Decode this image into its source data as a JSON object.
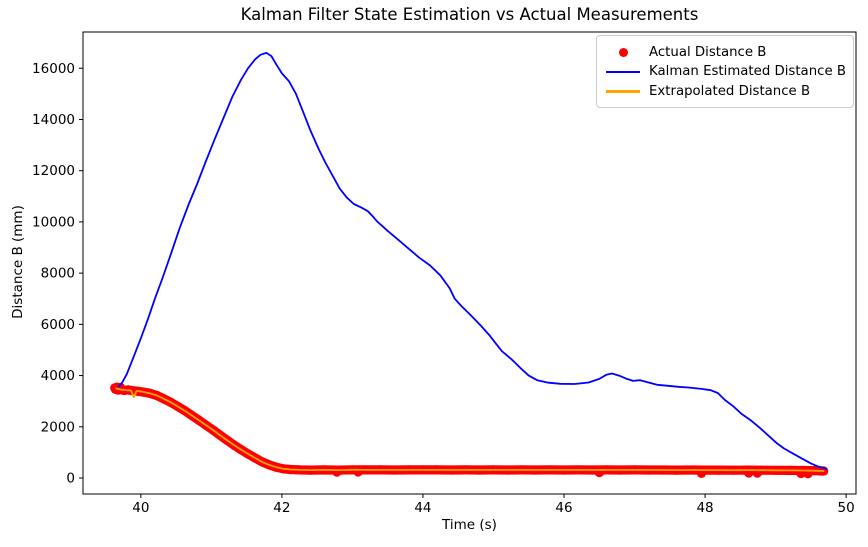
{
  "chart": {
    "title": "Kalman Filter State Estimation vs Actual Measurements",
    "xlabel": "Time (s)",
    "ylabel": "Distance B (mm)"
  },
  "legend": {
    "position": "upper right",
    "items": [
      {
        "label": "Actual Distance B",
        "marker": "dot",
        "color": "#ff0000"
      },
      {
        "label": "Kalman Estimated Distance B",
        "marker": "line",
        "color": "#0000ff"
      },
      {
        "label": "Extrapolated Distance B",
        "marker": "line",
        "color": "#ffa500"
      }
    ]
  },
  "chart_data": {
    "type": "line+scatter",
    "title": "Kalman Filter State Estimation vs Actual Measurements",
    "xlabel": "Time (s)",
    "ylabel": "Distance B (mm)",
    "xlim": [
      39.18,
      50.14
    ],
    "ylim": [
      -625,
      17416
    ],
    "x_ticks": [
      40,
      42,
      44,
      46,
      48,
      50
    ],
    "y_ticks": [
      0,
      2000,
      4000,
      6000,
      8000,
      10000,
      12000,
      14000,
      16000
    ],
    "grid": false,
    "legend_position": "upper right",
    "series": [
      {
        "id": "actual",
        "name": "Actual Distance B",
        "type": "scatter",
        "color": "#ff0000",
        "marker_radius": 4.6,
        "points": [
          [
            39.65,
            3500
          ],
          [
            39.7,
            3460
          ],
          [
            39.76,
            3420
          ],
          [
            39.82,
            3440
          ],
          [
            39.88,
            3410
          ],
          [
            39.95,
            3390
          ],
          [
            40.03,
            3360
          ],
          [
            40.12,
            3310
          ],
          [
            40.22,
            3230
          ],
          [
            40.32,
            3100
          ],
          [
            40.42,
            2960
          ],
          [
            40.52,
            2800
          ],
          [
            40.62,
            2630
          ],
          [
            40.72,
            2450
          ],
          [
            40.82,
            2260
          ],
          [
            40.92,
            2070
          ],
          [
            41.02,
            1880
          ],
          [
            41.12,
            1680
          ],
          [
            41.22,
            1480
          ],
          [
            41.32,
            1290
          ],
          [
            41.42,
            1110
          ],
          [
            41.52,
            940
          ],
          [
            41.62,
            780
          ],
          [
            41.72,
            630
          ],
          [
            41.82,
            510
          ],
          [
            41.92,
            420
          ],
          [
            42.02,
            360
          ],
          [
            42.12,
            330
          ],
          [
            42.25,
            315
          ],
          [
            42.4,
            310
          ],
          [
            42.6,
            315
          ],
          [
            42.8,
            310
          ],
          [
            43.0,
            320
          ],
          [
            43.2,
            315
          ],
          [
            43.4,
            318
          ],
          [
            43.6,
            312
          ],
          [
            43.8,
            318
          ],
          [
            44.0,
            315
          ],
          [
            44.2,
            318
          ],
          [
            44.4,
            312
          ],
          [
            44.6,
            316
          ],
          [
            44.8,
            312
          ],
          [
            45.0,
            318
          ],
          [
            45.2,
            314
          ],
          [
            45.4,
            316
          ],
          [
            45.6,
            312
          ],
          [
            45.8,
            316
          ],
          [
            46.0,
            314
          ],
          [
            46.2,
            316
          ],
          [
            46.4,
            312
          ],
          [
            46.6,
            315
          ],
          [
            46.8,
            312
          ],
          [
            47.0,
            316
          ],
          [
            47.2,
            312
          ],
          [
            47.4,
            314
          ],
          [
            47.6,
            310
          ],
          [
            47.8,
            312
          ],
          [
            48.0,
            308
          ],
          [
            48.2,
            310
          ],
          [
            48.4,
            306
          ],
          [
            48.6,
            308
          ],
          [
            48.8,
            304
          ],
          [
            49.0,
            300
          ],
          [
            49.2,
            298
          ],
          [
            49.4,
            292
          ],
          [
            49.55,
            285
          ],
          [
            49.68,
            275
          ]
        ],
        "extra_points": [
          [
            39.63,
            3520
          ],
          [
            39.64,
            3460
          ],
          [
            39.66,
            3550
          ],
          [
            39.68,
            3430
          ],
          [
            39.71,
            3540
          ],
          [
            39.69,
            3490
          ],
          [
            42.78,
            230
          ],
          [
            43.08,
            235
          ],
          [
            46.5,
            210
          ],
          [
            47.95,
            180
          ],
          [
            48.62,
            195
          ],
          [
            48.74,
            190
          ],
          [
            49.36,
            175
          ],
          [
            49.46,
            165
          ]
        ]
      },
      {
        "id": "kalman",
        "name": "Kalman Estimated Distance B",
        "type": "line",
        "color": "#0000ff",
        "width": 1.8,
        "points": [
          [
            39.68,
            3560
          ],
          [
            39.73,
            3700
          ],
          [
            39.8,
            4050
          ],
          [
            39.9,
            4750
          ],
          [
            40.0,
            5450
          ],
          [
            40.1,
            6200
          ],
          [
            40.2,
            7000
          ],
          [
            40.3,
            7750
          ],
          [
            40.42,
            8700
          ],
          [
            40.55,
            9750
          ],
          [
            40.68,
            10700
          ],
          [
            40.8,
            11500
          ],
          [
            40.92,
            12350
          ],
          [
            41.05,
            13250
          ],
          [
            41.17,
            14050
          ],
          [
            41.3,
            14900
          ],
          [
            41.42,
            15550
          ],
          [
            41.52,
            16000
          ],
          [
            41.62,
            16350
          ],
          [
            41.7,
            16530
          ],
          [
            41.78,
            16600
          ],
          [
            41.85,
            16480
          ],
          [
            41.92,
            16150
          ],
          [
            42.0,
            15800
          ],
          [
            42.1,
            15500
          ],
          [
            42.2,
            15000
          ],
          [
            42.3,
            14300
          ],
          [
            42.4,
            13600
          ],
          [
            42.52,
            12850
          ],
          [
            42.62,
            12300
          ],
          [
            42.72,
            11800
          ],
          [
            42.82,
            11300
          ],
          [
            42.92,
            10950
          ],
          [
            43.02,
            10700
          ],
          [
            43.12,
            10570
          ],
          [
            43.22,
            10420
          ],
          [
            43.3,
            10180
          ],
          [
            43.35,
            10020
          ],
          [
            43.5,
            9650
          ],
          [
            43.65,
            9300
          ],
          [
            43.8,
            8950
          ],
          [
            43.95,
            8600
          ],
          [
            44.1,
            8300
          ],
          [
            44.25,
            7900
          ],
          [
            44.38,
            7400
          ],
          [
            44.45,
            7000
          ],
          [
            44.55,
            6700
          ],
          [
            44.68,
            6350
          ],
          [
            44.82,
            5950
          ],
          [
            44.95,
            5550
          ],
          [
            45.02,
            5300
          ],
          [
            45.12,
            4950
          ],
          [
            45.25,
            4650
          ],
          [
            45.38,
            4300
          ],
          [
            45.5,
            4000
          ],
          [
            45.62,
            3820
          ],
          [
            45.78,
            3720
          ],
          [
            45.95,
            3680
          ],
          [
            46.15,
            3670
          ],
          [
            46.35,
            3730
          ],
          [
            46.5,
            3870
          ],
          [
            46.6,
            4030
          ],
          [
            46.68,
            4080
          ],
          [
            46.78,
            4000
          ],
          [
            46.88,
            3880
          ],
          [
            46.98,
            3790
          ],
          [
            47.08,
            3820
          ],
          [
            47.2,
            3730
          ],
          [
            47.32,
            3640
          ],
          [
            47.48,
            3600
          ],
          [
            47.62,
            3560
          ],
          [
            47.78,
            3530
          ],
          [
            47.95,
            3480
          ],
          [
            48.08,
            3430
          ],
          [
            48.18,
            3320
          ],
          [
            48.28,
            3050
          ],
          [
            48.4,
            2800
          ],
          [
            48.52,
            2500
          ],
          [
            48.65,
            2250
          ],
          [
            48.78,
            1950
          ],
          [
            48.9,
            1650
          ],
          [
            49.02,
            1350
          ],
          [
            49.12,
            1150
          ],
          [
            49.25,
            950
          ],
          [
            49.38,
            750
          ],
          [
            49.5,
            570
          ],
          [
            49.6,
            450
          ],
          [
            49.72,
            360
          ]
        ]
      },
      {
        "id": "extrapolated",
        "name": "Extrapolated Distance B",
        "type": "line",
        "color": "#ffa500",
        "width": 1.8,
        "points": [
          [
            39.65,
            3500
          ],
          [
            39.72,
            3450
          ],
          [
            39.8,
            3430
          ],
          [
            39.86,
            3420
          ],
          [
            39.9,
            3150
          ],
          [
            39.94,
            3400
          ],
          [
            40.03,
            3370
          ],
          [
            40.12,
            3310
          ],
          [
            40.22,
            3230
          ],
          [
            40.32,
            3100
          ],
          [
            40.42,
            2960
          ],
          [
            40.52,
            2800
          ],
          [
            40.62,
            2630
          ],
          [
            40.72,
            2450
          ],
          [
            40.82,
            2260
          ],
          [
            40.92,
            2070
          ],
          [
            41.02,
            1880
          ],
          [
            41.12,
            1680
          ],
          [
            41.22,
            1480
          ],
          [
            41.32,
            1290
          ],
          [
            41.42,
            1110
          ],
          [
            41.52,
            940
          ],
          [
            41.62,
            780
          ],
          [
            41.72,
            630
          ],
          [
            41.82,
            510
          ],
          [
            41.92,
            420
          ],
          [
            42.02,
            360
          ],
          [
            42.12,
            330
          ],
          [
            42.25,
            315
          ],
          [
            42.4,
            310
          ],
          [
            42.6,
            315
          ],
          [
            42.8,
            310
          ],
          [
            43.0,
            320
          ],
          [
            43.2,
            315
          ],
          [
            43.4,
            318
          ],
          [
            43.6,
            312
          ],
          [
            43.8,
            318
          ],
          [
            44.0,
            315
          ],
          [
            44.2,
            318
          ],
          [
            44.4,
            312
          ],
          [
            44.6,
            316
          ],
          [
            44.8,
            312
          ],
          [
            45.0,
            318
          ],
          [
            45.2,
            314
          ],
          [
            45.4,
            316
          ],
          [
            45.6,
            312
          ],
          [
            45.8,
            316
          ],
          [
            46.0,
            314
          ],
          [
            46.2,
            316
          ],
          [
            46.4,
            312
          ],
          [
            46.6,
            315
          ],
          [
            46.8,
            312
          ],
          [
            47.0,
            316
          ],
          [
            47.2,
            312
          ],
          [
            47.4,
            314
          ],
          [
            47.6,
            310
          ],
          [
            47.8,
            312
          ],
          [
            48.0,
            308
          ],
          [
            48.2,
            310
          ],
          [
            48.4,
            306
          ],
          [
            48.6,
            308
          ],
          [
            48.8,
            304
          ],
          [
            49.0,
            300
          ],
          [
            49.2,
            298
          ],
          [
            49.4,
            292
          ],
          [
            49.55,
            285
          ],
          [
            49.68,
            275
          ]
        ]
      }
    ]
  }
}
